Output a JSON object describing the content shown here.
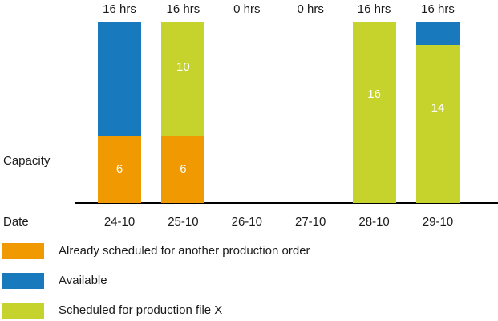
{
  "figure": {
    "y_axis_label": "Capacity",
    "x_axis_label": "Date"
  },
  "chart_data": {
    "type": "bar",
    "stacked": true,
    "title": "",
    "xlabel": "Date",
    "ylabel": "Capacity",
    "unit": "hrs",
    "ylim": [
      0,
      16
    ],
    "grid": false,
    "legend_position": "bottom-left",
    "categories": [
      "24-10",
      "25-10",
      "26-10",
      "27-10",
      "28-10",
      "29-10"
    ],
    "column_totals": [
      "16 hrs",
      "16 hrs",
      "0 hrs",
      "0 hrs",
      "16 hrs",
      "16 hrs"
    ],
    "series": [
      {
        "key": "already-scheduled",
        "name": "Already scheduled for another production order",
        "color": "#F09900",
        "values": [
          6,
          6,
          0,
          0,
          0,
          0
        ],
        "value_labels": [
          "6",
          "6",
          "",
          "",
          "",
          ""
        ]
      },
      {
        "key": "scheduled-file-x",
        "name": "Scheduled for production file X",
        "color": "#C5D32C",
        "values": [
          0,
          10,
          0,
          0,
          16,
          14
        ],
        "value_labels": [
          "",
          "10",
          "",
          "",
          "16",
          "14"
        ]
      },
      {
        "key": "available",
        "name": "Available",
        "color": "#1879BD",
        "values": [
          10,
          0,
          0,
          0,
          0,
          2
        ],
        "value_labels": [
          "",
          "",
          "",
          "",
          "",
          ""
        ]
      }
    ]
  },
  "legend": {
    "items": [
      {
        "key": "already-scheduled",
        "label": "Already scheduled for another production order",
        "color": "#F09900"
      },
      {
        "key": "available",
        "label": "Available",
        "color": "#1879BD"
      },
      {
        "key": "scheduled-file-x",
        "label": "Scheduled for production file X",
        "color": "#C5D32C"
      }
    ]
  }
}
